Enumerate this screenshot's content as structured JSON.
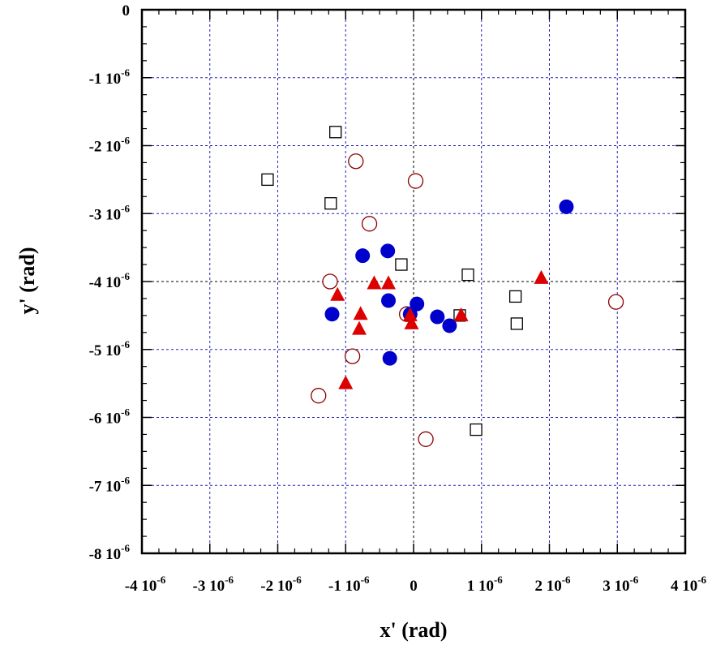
{
  "chart_data": {
    "type": "scatter",
    "title": "",
    "xlabel": "x' (rad)",
    "ylabel": "y' (rad)",
    "xlim": [
      -4e-06,
      4e-06
    ],
    "ylim": [
      -8e-06,
      0
    ],
    "grid": true,
    "x_ticks": [
      {
        "value": -4e-06,
        "mantissa": "-4",
        "base": "10",
        "exponent": "-6"
      },
      {
        "value": -3e-06,
        "mantissa": "-3",
        "base": "10",
        "exponent": "-6"
      },
      {
        "value": -2e-06,
        "mantissa": "-2",
        "base": "10",
        "exponent": "-6"
      },
      {
        "value": -1e-06,
        "mantissa": "-1",
        "base": "10",
        "exponent": "-6"
      },
      {
        "value": 0,
        "mantissa": "0",
        "base": "",
        "exponent": ""
      },
      {
        "value": 1e-06,
        "mantissa": "1",
        "base": "10",
        "exponent": "-6"
      },
      {
        "value": 2e-06,
        "mantissa": "2",
        "base": "10",
        "exponent": "-6"
      },
      {
        "value": 3e-06,
        "mantissa": "3",
        "base": "10",
        "exponent": "-6"
      },
      {
        "value": 4e-06,
        "mantissa": "4",
        "base": "10",
        "exponent": "-6"
      }
    ],
    "y_ticks": [
      {
        "value": 0,
        "mantissa": "0",
        "base": "",
        "exponent": ""
      },
      {
        "value": -1e-06,
        "mantissa": "-1",
        "base": "10",
        "exponent": "-6"
      },
      {
        "value": -2e-06,
        "mantissa": "-2",
        "base": "10",
        "exponent": "-6"
      },
      {
        "value": -3e-06,
        "mantissa": "-3",
        "base": "10",
        "exponent": "-6"
      },
      {
        "value": -4e-06,
        "mantissa": "-4",
        "base": "10",
        "exponent": "-6"
      },
      {
        "value": -5e-06,
        "mantissa": "-5",
        "base": "10",
        "exponent": "-6"
      },
      {
        "value": -6e-06,
        "mantissa": "-6",
        "base": "10",
        "exponent": "-6"
      },
      {
        "value": -7e-06,
        "mantissa": "-7",
        "base": "10",
        "exponent": "-6"
      },
      {
        "value": -8e-06,
        "mantissa": "-8",
        "base": "10",
        "exponent": "-6"
      }
    ],
    "series": [
      {
        "marker": "open-square",
        "color": "#000000",
        "points": [
          [
            -2.15e-06,
            -2.5e-06
          ],
          [
            -1.15e-06,
            -1.8e-06
          ],
          [
            -1.22e-06,
            -2.85e-06
          ],
          [
            -1.8e-07,
            -3.75e-06
          ],
          [
            8e-07,
            -3.9e-06
          ],
          [
            6.8e-07,
            -4.5e-06
          ],
          [
            1.5e-06,
            -4.22e-06
          ],
          [
            1.52e-06,
            -4.62e-06
          ],
          [
            9.2e-07,
            -6.18e-06
          ]
        ]
      },
      {
        "marker": "open-circle",
        "color": "#8b0000",
        "points": [
          [
            -8.5e-07,
            -2.23e-06
          ],
          [
            3e-08,
            -2.52e-06
          ],
          [
            -6.5e-07,
            -3.15e-06
          ],
          [
            -1.23e-06,
            -4e-06
          ],
          [
            -1e-07,
            -4.48e-06
          ],
          [
            2.98e-06,
            -4.3e-06
          ],
          [
            -9e-07,
            -5.1e-06
          ],
          [
            -1.4e-06,
            -5.68e-06
          ],
          [
            1.8e-07,
            -6.32e-06
          ]
        ]
      },
      {
        "marker": "filled-circle",
        "color": "#0000cc",
        "points": [
          [
            2.25e-06,
            -2.9e-06
          ],
          [
            -7.5e-07,
            -3.62e-06
          ],
          [
            -3.8e-07,
            -3.55e-06
          ],
          [
            -3.7e-07,
            -4.28e-06
          ],
          [
            5e-08,
            -4.33e-06
          ],
          [
            -5e-08,
            -4.48e-06
          ],
          [
            3.5e-07,
            -4.52e-06
          ],
          [
            5.3e-07,
            -4.65e-06
          ],
          [
            -1.2e-06,
            -4.48e-06
          ],
          [
            -3.5e-07,
            -5.13e-06
          ]
        ]
      },
      {
        "marker": "filled-triangle",
        "color": "#dd0000",
        "points": [
          [
            -1.12e-06,
            -4.2e-06
          ],
          [
            -5.8e-07,
            -4.03e-06
          ],
          [
            -3.7e-07,
            -4.03e-06
          ],
          [
            1.88e-06,
            -3.95e-06
          ],
          [
            -7.8e-07,
            -4.48e-06
          ],
          [
            -8e-07,
            -4.7e-06
          ],
          [
            -5e-08,
            -4.5e-06
          ],
          [
            -3e-08,
            -4.62e-06
          ],
          [
            7e-07,
            -4.5e-06
          ],
          [
            -1e-06,
            -5.5e-06
          ]
        ]
      }
    ]
  }
}
